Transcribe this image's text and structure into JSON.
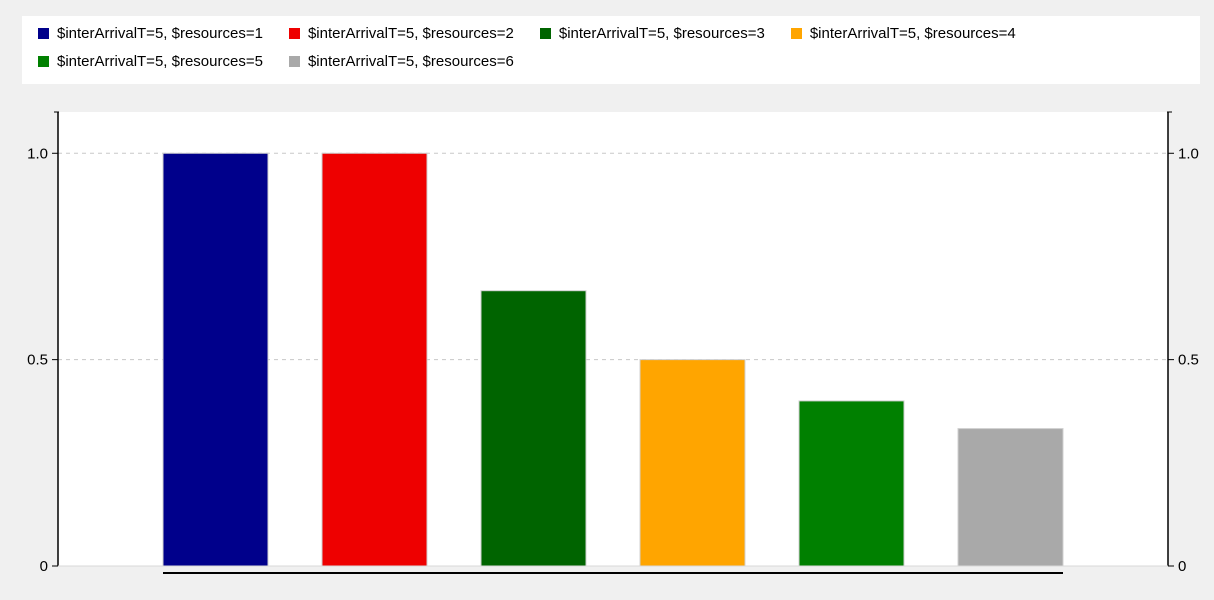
{
  "chart_data": {
    "type": "bar",
    "title": "",
    "xlabel": "",
    "ylabel": "",
    "ylim": [
      0,
      1.1
    ],
    "yticks": [
      0,
      0.5,
      1.0
    ],
    "ytick_labels": [
      "0",
      "0.5",
      "1.0"
    ],
    "grid": "horizontal dashed",
    "legend_position": "top",
    "secondary_y_axis": true,
    "series": [
      {
        "name": "$interArrivalT=5, $resources=1",
        "value": 1.0,
        "color": "#00008b"
      },
      {
        "name": "$interArrivalT=5, $resources=2",
        "value": 1.0,
        "color": "#ee0000"
      },
      {
        "name": "$interArrivalT=5, $resources=3",
        "value": 0.667,
        "color": "#006400"
      },
      {
        "name": "$interArrivalT=5, $resources=4",
        "value": 0.5,
        "color": "#ffa500"
      },
      {
        "name": "$interArrivalT=5, $resources=5",
        "value": 0.4,
        "color": "#008000"
      },
      {
        "name": "$interArrivalT=5, $resources=6",
        "value": 0.333,
        "color": "#a9a9a9"
      }
    ]
  }
}
